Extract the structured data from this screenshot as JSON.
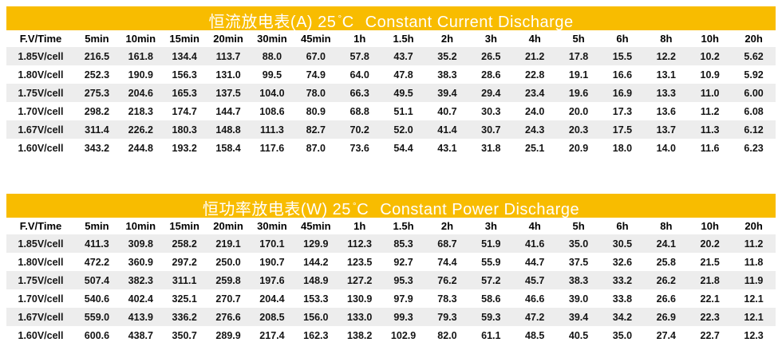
{
  "page": {
    "background": "#ffffff",
    "accent": "#F8BC00",
    "stripe": "#EDEDED",
    "title_text_color": "#ffffff"
  },
  "tables": [
    {
      "title_prefix": "恒流放电表(A) 25",
      "degree": "°",
      "celsius": "C",
      "title_en": "Constant Current Discharge",
      "columns": [
        "F.V/Time",
        "5min",
        "10min",
        "15min",
        "20min",
        "30min",
        "45min",
        "1h",
        "1.5h",
        "2h",
        "3h",
        "4h",
        "5h",
        "6h",
        "8h",
        "10h",
        "20h"
      ],
      "rows": [
        {
          "label": "1.85V/cell",
          "values": [
            "216.5",
            "161.8",
            "134.4",
            "113.7",
            "88.0",
            "67.0",
            "57.8",
            "43.7",
            "35.2",
            "26.5",
            "21.2",
            "17.8",
            "15.5",
            "12.2",
            "10.2",
            "5.62"
          ]
        },
        {
          "label": "1.80V/cell",
          "values": [
            "252.3",
            "190.9",
            "156.3",
            "131.0",
            "99.5",
            "74.9",
            "64.0",
            "47.8",
            "38.3",
            "28.6",
            "22.8",
            "19.1",
            "16.6",
            "13.1",
            "10.9",
            "5.92"
          ]
        },
        {
          "label": "1.75V/cell",
          "values": [
            "275.3",
            "204.6",
            "165.3",
            "137.5",
            "104.0",
            "78.0",
            "66.3",
            "49.5",
            "39.4",
            "29.4",
            "23.4",
            "19.6",
            "16.9",
            "13.3",
            "11.0",
            "6.00"
          ]
        },
        {
          "label": "1.70V/cell",
          "values": [
            "298.2",
            "218.3",
            "174.7",
            "144.7",
            "108.6",
            "80.9",
            "68.8",
            "51.1",
            "40.7",
            "30.3",
            "24.0",
            "20.0",
            "17.3",
            "13.6",
            "11.2",
            "6.08"
          ]
        },
        {
          "label": "1.67V/cell",
          "values": [
            "311.4",
            "226.2",
            "180.3",
            "148.8",
            "111.3",
            "82.7",
            "70.2",
            "52.0",
            "41.4",
            "30.7",
            "24.3",
            "20.3",
            "17.5",
            "13.7",
            "11.3",
            "6.12"
          ]
        },
        {
          "label": "1.60V/cell",
          "values": [
            "343.2",
            "244.8",
            "193.2",
            "158.4",
            "117.6",
            "87.0",
            "73.6",
            "54.4",
            "43.1",
            "31.8",
            "25.1",
            "20.9",
            "18.0",
            "14.0",
            "11.6",
            "6.23"
          ]
        }
      ]
    },
    {
      "title_prefix": "恒功率放电表(W) 25",
      "degree": "°",
      "celsius": "C",
      "title_en": "Constant Power Discharge",
      "columns": [
        "F.V/Time",
        "5min",
        "10min",
        "15min",
        "20min",
        "30min",
        "45min",
        "1h",
        "1.5h",
        "2h",
        "3h",
        "4h",
        "5h",
        "6h",
        "8h",
        "10h",
        "20h"
      ],
      "rows": [
        {
          "label": "1.85V/cell",
          "values": [
            "411.3",
            "309.8",
            "258.2",
            "219.1",
            "170.1",
            "129.9",
            "112.3",
            "85.3",
            "68.7",
            "51.9",
            "41.6",
            "35.0",
            "30.5",
            "24.1",
            "20.2",
            "11.2"
          ]
        },
        {
          "label": "1.80V/cell",
          "values": [
            "472.2",
            "360.9",
            "297.2",
            "250.0",
            "190.7",
            "144.2",
            "123.5",
            "92.7",
            "74.4",
            "55.9",
            "44.7",
            "37.5",
            "32.6",
            "25.8",
            "21.5",
            "11.8"
          ]
        },
        {
          "label": "1.75V/cell",
          "values": [
            "507.4",
            "382.3",
            "311.1",
            "259.8",
            "197.6",
            "148.9",
            "127.2",
            "95.3",
            "76.2",
            "57.2",
            "45.7",
            "38.3",
            "33.2",
            "26.2",
            "21.8",
            "11.9"
          ]
        },
        {
          "label": "1.70V/cell",
          "values": [
            "540.6",
            "402.4",
            "325.1",
            "270.7",
            "204.4",
            "153.3",
            "130.9",
            "97.9",
            "78.3",
            "58.6",
            "46.6",
            "39.0",
            "33.8",
            "26.6",
            "22.1",
            "12.1"
          ]
        },
        {
          "label": "1.67V/cell",
          "values": [
            "559.0",
            "413.9",
            "336.2",
            "276.6",
            "208.5",
            "156.0",
            "133.0",
            "99.3",
            "79.3",
            "59.3",
            "47.2",
            "39.4",
            "34.2",
            "26.9",
            "22.3",
            "12.1"
          ]
        },
        {
          "label": "1.60V/cell",
          "values": [
            "600.6",
            "438.7",
            "350.7",
            "289.9",
            "217.4",
            "162.3",
            "138.2",
            "102.9",
            "82.0",
            "61.1",
            "48.5",
            "40.5",
            "35.0",
            "27.4",
            "22.7",
            "12.3"
          ]
        }
      ]
    }
  ]
}
